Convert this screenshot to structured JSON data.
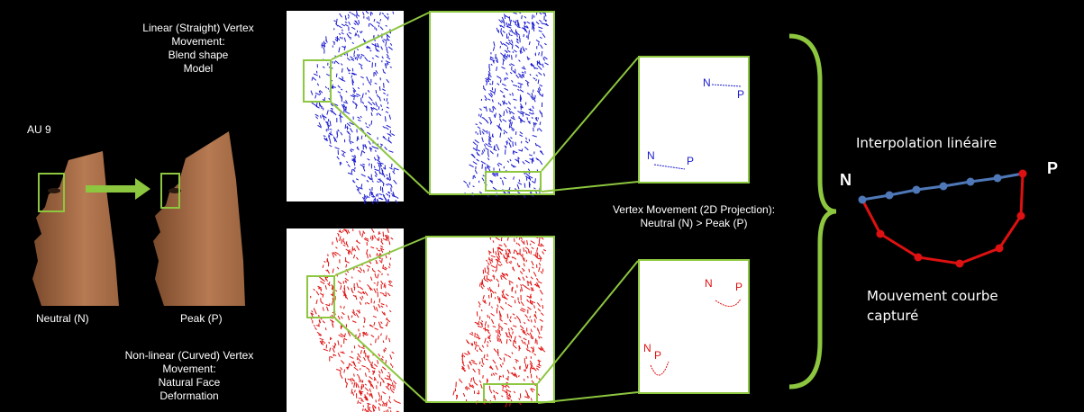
{
  "top_caption": {
    "line1": "Linear (Straight) Vertex",
    "line2": "Movement:",
    "line3": "Blend shape",
    "line4": "Model"
  },
  "bottom_caption": {
    "line1": "Non-linear (Curved) Vertex",
    "line2": "Movement:",
    "line3": "Natural Face",
    "line4": "Deformation"
  },
  "au_label": "AU 9",
  "neutral_label": "Neutral (N)",
  "peak_label": "Peak (P)",
  "projection_caption": {
    "line1": "Vertex Movement (2D Projection):",
    "line2": "Neutral (N) > Peak (P)"
  },
  "zoom_labels": {
    "n": "N",
    "p": "P"
  },
  "right_diagram": {
    "title": "Interpolation linéaire",
    "n_label": "N",
    "p_label": "P",
    "curve_label_line1": "Mouvement courbe",
    "curve_label_line2": "capturé"
  },
  "colors": {
    "linear": "#1a1ad0",
    "curved": "#e01010",
    "frame": "#8dc63f",
    "blue_path": "#4f78b8",
    "red_path": "#dd1111"
  }
}
